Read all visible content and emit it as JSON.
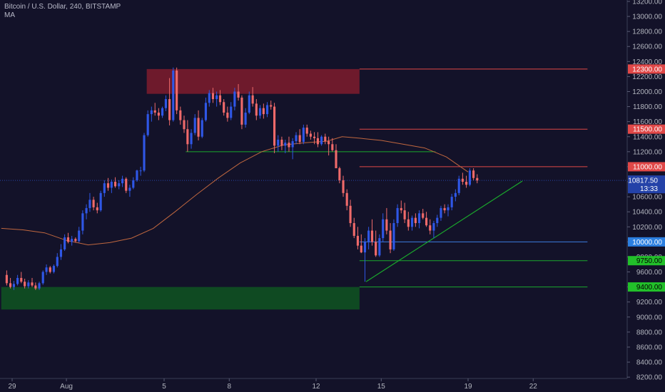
{
  "header": {
    "symbol_line": "Bitcoin / U.S. Dollar, 240, BITSTAMP",
    "indicator": "MA"
  },
  "colors": {
    "background": "#131229",
    "up": "#2f57e6",
    "down": "#ef6a6a",
    "ma": "#c0673f",
    "support": "#1aa82c",
    "resistance": "#e04848",
    "current_price_line": "#2846a8",
    "blue_level": "#3b7be0"
  },
  "chart_data": {
    "type": "candlestick",
    "title": "",
    "xlabel": "",
    "ylabel": "",
    "y_range": [
      8150,
      13200
    ],
    "x_range": [
      "Jul 29",
      "Aug 24"
    ],
    "y_ticks": [
      13200,
      13000,
      12800,
      12600,
      12400,
      12200,
      12000,
      11800,
      11600,
      11400,
      11200,
      11000,
      10800,
      10600,
      10400,
      10200,
      10000,
      9800,
      9600,
      9400,
      9200,
      9000,
      8800,
      8600,
      8400,
      8200
    ],
    "y_tick_labels": [
      "13200.00",
      "13000.00",
      "12800.00",
      "12600.00",
      "12400.00",
      "12200.00",
      "12000.00",
      "11800.00",
      "11600.00",
      "11400.00",
      "11200.00",
      "11000.00",
      "10800.00",
      "10600.00",
      "10400.00",
      "10200.00",
      "10000.00",
      "9800.00",
      "9600.00",
      "9400.00",
      "9200.00",
      "9000.00",
      "8800.00",
      "8600.00",
      "8400.00",
      "8200.00"
    ],
    "x_ticks": [
      {
        "day": 29,
        "label": "29"
      },
      {
        "day": 31.5,
        "label": "Aug"
      },
      {
        "day": 36,
        "label": "5"
      },
      {
        "day": 39,
        "label": "8"
      },
      {
        "day": 43,
        "label": "12"
      },
      {
        "day": 46,
        "label": "15"
      },
      {
        "day": 50,
        "label": "19"
      },
      {
        "day": 53,
        "label": "22"
      }
    ],
    "candles_per_day": 6,
    "candles": [
      [
        28.75,
        9560,
        9620,
        9420,
        9450
      ],
      [
        28.92,
        9450,
        9520,
        9380,
        9400
      ],
      [
        29.08,
        9400,
        9480,
        9360,
        9440
      ],
      [
        29.25,
        9440,
        9560,
        9420,
        9520
      ],
      [
        29.42,
        9520,
        9600,
        9450,
        9470
      ],
      [
        29.58,
        9470,
        9510,
        9380,
        9410
      ],
      [
        29.75,
        9410,
        9490,
        9380,
        9460
      ],
      [
        29.92,
        9460,
        9520,
        9400,
        9420
      ],
      [
        30.08,
        9420,
        9460,
        9360,
        9380
      ],
      [
        30.25,
        9380,
        9470,
        9360,
        9450
      ],
      [
        30.42,
        9450,
        9620,
        9430,
        9600
      ],
      [
        30.58,
        9600,
        9700,
        9560,
        9660
      ],
      [
        30.75,
        9660,
        9680,
        9580,
        9600
      ],
      [
        30.92,
        9600,
        9700,
        9580,
        9680
      ],
      [
        31.08,
        9680,
        9850,
        9660,
        9800
      ],
      [
        31.25,
        9800,
        9970,
        9760,
        9900
      ],
      [
        31.42,
        9900,
        10100,
        9880,
        10060
      ],
      [
        31.58,
        10060,
        10120,
        9980,
        10000
      ],
      [
        31.75,
        10000,
        10080,
        9950,
        10040
      ],
      [
        31.92,
        10040,
        10060,
        9990,
        10010
      ],
      [
        32.08,
        10010,
        10200,
        9990,
        10150
      ],
      [
        32.25,
        10150,
        10420,
        10100,
        10380
      ],
      [
        32.42,
        10380,
        10500,
        10300,
        10450
      ],
      [
        32.58,
        10450,
        10650,
        10400,
        10560
      ],
      [
        32.75,
        10560,
        10600,
        10420,
        10460
      ],
      [
        32.92,
        10460,
        10520,
        10380,
        10420
      ],
      [
        33.08,
        10420,
        10680,
        10400,
        10650
      ],
      [
        33.25,
        10650,
        10820,
        10600,
        10780
      ],
      [
        33.42,
        10780,
        10850,
        10680,
        10720
      ],
      [
        33.58,
        10720,
        10830,
        10650,
        10800
      ],
      [
        33.75,
        10800,
        10860,
        10720,
        10740
      ],
      [
        33.92,
        10740,
        10820,
        10700,
        10780
      ],
      [
        34.08,
        10780,
        10880,
        10730,
        10840
      ],
      [
        34.25,
        10840,
        10860,
        10650,
        10680
      ],
      [
        34.42,
        10680,
        10760,
        10600,
        10720
      ],
      [
        34.58,
        10720,
        10860,
        10700,
        10820
      ],
      [
        34.75,
        10820,
        10960,
        10800,
        10950
      ],
      [
        34.92,
        10950,
        11000,
        10880,
        10950
      ],
      [
        35.08,
        10950,
        11450,
        10930,
        11420
      ],
      [
        35.25,
        11420,
        11750,
        11400,
        11700
      ],
      [
        35.42,
        11700,
        11800,
        11600,
        11750
      ],
      [
        35.58,
        11750,
        11850,
        11680,
        11720
      ],
      [
        35.75,
        11720,
        11780,
        11620,
        11680
      ],
      [
        35.92,
        11680,
        11800,
        11650,
        11780
      ],
      [
        36.08,
        11780,
        11950,
        11740,
        11900
      ],
      [
        36.25,
        11900,
        12180,
        11550,
        11620
      ],
      [
        36.42,
        11620,
        12320,
        11600,
        12280
      ],
      [
        36.58,
        12280,
        12320,
        11700,
        11750
      ],
      [
        36.75,
        11750,
        11800,
        11560,
        11620
      ],
      [
        36.92,
        11620,
        11680,
        11450,
        11500
      ],
      [
        37.08,
        11500,
        11620,
        11200,
        11300
      ],
      [
        37.25,
        11300,
        11500,
        11240,
        11450
      ],
      [
        37.42,
        11450,
        11700,
        11420,
        11650
      ],
      [
        37.58,
        11650,
        11750,
        11350,
        11400
      ],
      [
        37.75,
        11400,
        11650,
        11380,
        11620
      ],
      [
        37.92,
        11620,
        11920,
        11600,
        11850
      ],
      [
        38.08,
        11850,
        12020,
        11800,
        11980
      ],
      [
        38.25,
        11980,
        12050,
        11850,
        11900
      ],
      [
        38.42,
        11900,
        12000,
        11800,
        11950
      ],
      [
        38.58,
        11950,
        12020,
        11820,
        11860
      ],
      [
        38.75,
        11860,
        11900,
        11680,
        11720
      ],
      [
        38.92,
        11720,
        11800,
        11600,
        11650
      ],
      [
        39.08,
        11650,
        11860,
        11620,
        11800
      ],
      [
        39.25,
        11800,
        12050,
        11750,
        12000
      ],
      [
        39.42,
        12000,
        12100,
        11880,
        11920
      ],
      [
        39.58,
        11920,
        11950,
        11500,
        11560
      ],
      [
        39.75,
        11560,
        11780,
        11520,
        11720
      ],
      [
        39.92,
        11720,
        12000,
        11700,
        11950
      ],
      [
        40.08,
        11950,
        12060,
        11800,
        11840
      ],
      [
        40.25,
        11840,
        11900,
        11620,
        11680
      ],
      [
        40.42,
        11680,
        11820,
        11640,
        11780
      ],
      [
        40.58,
        11780,
        11840,
        11640,
        11700
      ],
      [
        40.75,
        11700,
        11860,
        11660,
        11820
      ],
      [
        40.92,
        11820,
        11880,
        11760,
        11800
      ],
      [
        41.08,
        11800,
        11850,
        11180,
        11280
      ],
      [
        41.25,
        11280,
        11420,
        11200,
        11360
      ],
      [
        41.42,
        11360,
        11400,
        11220,
        11280
      ],
      [
        41.58,
        11280,
        11360,
        11180,
        11320
      ],
      [
        41.75,
        11320,
        11400,
        11200,
        11260
      ],
      [
        41.92,
        11260,
        11380,
        11100,
        11340
      ],
      [
        42.08,
        11340,
        11460,
        11300,
        11420
      ],
      [
        42.25,
        11420,
        11500,
        11300,
        11330
      ],
      [
        42.42,
        11330,
        11560,
        11300,
        11520
      ],
      [
        42.58,
        11520,
        11560,
        11400,
        11440
      ],
      [
        42.75,
        11440,
        11480,
        11360,
        11400
      ],
      [
        42.92,
        11400,
        11460,
        11300,
        11380
      ],
      [
        43.08,
        11380,
        11460,
        11260,
        11300
      ],
      [
        43.25,
        11300,
        11420,
        11280,
        11400
      ],
      [
        43.42,
        11400,
        11440,
        11300,
        11340
      ],
      [
        43.58,
        11340,
        11400,
        11150,
        11300
      ],
      [
        43.75,
        11300,
        11380,
        11200,
        11220
      ],
      [
        43.92,
        11220,
        11300,
        11000,
        10980
      ],
      [
        44.08,
        10980,
        11000,
        10780,
        10820
      ],
      [
        44.25,
        10820,
        10880,
        10600,
        10650
      ],
      [
        44.42,
        10650,
        10700,
        10420,
        10480
      ],
      [
        44.58,
        10480,
        10560,
        10200,
        10250
      ],
      [
        44.75,
        10250,
        10320,
        10050,
        10080
      ],
      [
        44.92,
        10080,
        10200,
        9900,
        9950
      ],
      [
        45.08,
        9950,
        10100,
        9850,
        9860
      ],
      [
        45.25,
        9860,
        10050,
        9470,
        10000
      ],
      [
        45.42,
        10000,
        10200,
        9900,
        10150
      ],
      [
        45.58,
        10150,
        10300,
        9950,
        10000
      ],
      [
        45.75,
        10000,
        10150,
        9800,
        9820
      ],
      [
        45.92,
        9820,
        10100,
        9800,
        10050
      ],
      [
        46.08,
        10050,
        10380,
        10000,
        10300
      ],
      [
        46.25,
        10300,
        10450,
        10100,
        10150
      ],
      [
        46.42,
        10150,
        10250,
        9850,
        9900
      ],
      [
        46.58,
        9900,
        10300,
        9880,
        10250
      ],
      [
        46.75,
        10250,
        10500,
        10200,
        10450
      ],
      [
        46.92,
        10450,
        10550,
        10380,
        10420
      ],
      [
        47.08,
        10420,
        10520,
        10250,
        10300
      ],
      [
        47.25,
        10300,
        10400,
        10150,
        10200
      ],
      [
        47.42,
        10200,
        10350,
        10150,
        10320
      ],
      [
        47.58,
        10320,
        10380,
        10200,
        10250
      ],
      [
        47.75,
        10250,
        10420,
        10180,
        10380
      ],
      [
        47.92,
        10380,
        10440,
        10300,
        10320
      ],
      [
        48.08,
        10320,
        10400,
        10200,
        10220
      ],
      [
        48.25,
        10220,
        10300,
        10100,
        10150
      ],
      [
        48.42,
        10150,
        10280,
        10050,
        10250
      ],
      [
        48.58,
        10250,
        10360,
        10200,
        10320
      ],
      [
        48.75,
        10320,
        10480,
        10280,
        10450
      ],
      [
        48.92,
        10450,
        10500,
        10380,
        10420
      ],
      [
        49.08,
        10420,
        10500,
        10340,
        10460
      ],
      [
        49.25,
        10460,
        10640,
        10420,
        10600
      ],
      [
        49.42,
        10600,
        10700,
        10540,
        10650
      ],
      [
        49.58,
        10650,
        10880,
        10620,
        10840
      ],
      [
        49.75,
        10840,
        10920,
        10760,
        10800
      ],
      [
        49.92,
        10800,
        10880,
        10720,
        10760
      ],
      [
        50.08,
        10760,
        10980,
        10740,
        10950
      ],
      [
        50.25,
        10950,
        10980,
        10820,
        10850
      ],
      [
        50.42,
        10850,
        10900,
        10780,
        10817.5
      ]
    ],
    "moving_average": [
      [
        28.5,
        10180
      ],
      [
        29.5,
        10160
      ],
      [
        30.5,
        10120
      ],
      [
        31.5,
        10020
      ],
      [
        32.5,
        9960
      ],
      [
        33.5,
        9990
      ],
      [
        34.5,
        10050
      ],
      [
        35.5,
        10180
      ],
      [
        36.5,
        10400
      ],
      [
        37.5,
        10630
      ],
      [
        38.5,
        10850
      ],
      [
        39.5,
        11050
      ],
      [
        40.5,
        11200
      ],
      [
        41.5,
        11290
      ],
      [
        42.5,
        11320
      ],
      [
        43.5,
        11340
      ],
      [
        44.2,
        11400
      ],
      [
        45,
        11380
      ],
      [
        46,
        11350
      ],
      [
        47,
        11300
      ],
      [
        48,
        11250
      ],
      [
        49,
        11130
      ],
      [
        50,
        10930
      ]
    ],
    "zones": [
      {
        "name": "resistance-zone",
        "day_start": 35.2,
        "day_end": 45.0,
        "price_top": 12300,
        "price_bottom": 11970,
        "color": "#6e1a2c"
      },
      {
        "name": "support-zone",
        "day_start": 28.5,
        "day_end": 45.0,
        "price_top": 9400,
        "price_bottom": 9100,
        "color": "#0f4a22"
      }
    ],
    "lines": [
      {
        "name": "support-line-11200",
        "day_start": 37.0,
        "day_end": 48.5,
        "price": 11200,
        "color": "#1aa82c"
      },
      {
        "name": "resistance-line-12300",
        "day_start": 45.0,
        "day_end": 55.5,
        "price": 12300,
        "color": "#e04848"
      },
      {
        "name": "resistance-line-11500",
        "day_start": 45.0,
        "day_end": 55.5,
        "price": 11500,
        "color": "#e04848"
      },
      {
        "name": "resistance-line-11000",
        "day_start": 45.0,
        "day_end": 55.5,
        "price": 11000,
        "color": "#e04848"
      },
      {
        "name": "level-line-10000",
        "day_start": 45.0,
        "day_end": 55.5,
        "price": 10000,
        "color": "#3b7be0"
      },
      {
        "name": "support-line-9750",
        "day_start": 45.0,
        "day_end": 55.5,
        "price": 9750,
        "color": "#1aa82c"
      },
      {
        "name": "support-line-9400",
        "day_start": 45.0,
        "day_end": 55.5,
        "price": 9400,
        "color": "#1aa82c"
      }
    ],
    "trendline": {
      "from": [
        45.3,
        9470
      ],
      "to": [
        52.5,
        10810
      ],
      "color": "#1aa82c"
    },
    "price_tags": [
      {
        "price": 12300,
        "label": "12300.00",
        "bg": "#e04848",
        "fg": "#ffffff"
      },
      {
        "price": 11500,
        "label": "11500.00",
        "bg": "#e04848",
        "fg": "#ffffff"
      },
      {
        "price": 11000,
        "label": "11000.00",
        "bg": "#e04848",
        "fg": "#ffffff"
      },
      {
        "price": 10000,
        "label": "10000.00",
        "bg": "#2c7fe0",
        "fg": "#ffffff"
      },
      {
        "price": 9750,
        "label": "9750.00",
        "bg": "#22c02a",
        "fg": "#000000"
      },
      {
        "price": 9400,
        "label": "9400.00",
        "bg": "#22c02a",
        "fg": "#000000"
      }
    ],
    "current_price": {
      "price": 10817.5,
      "label": "10817.50",
      "countdown": "13:33",
      "bg": "#2442a8",
      "fg": "#ffffff"
    }
  }
}
